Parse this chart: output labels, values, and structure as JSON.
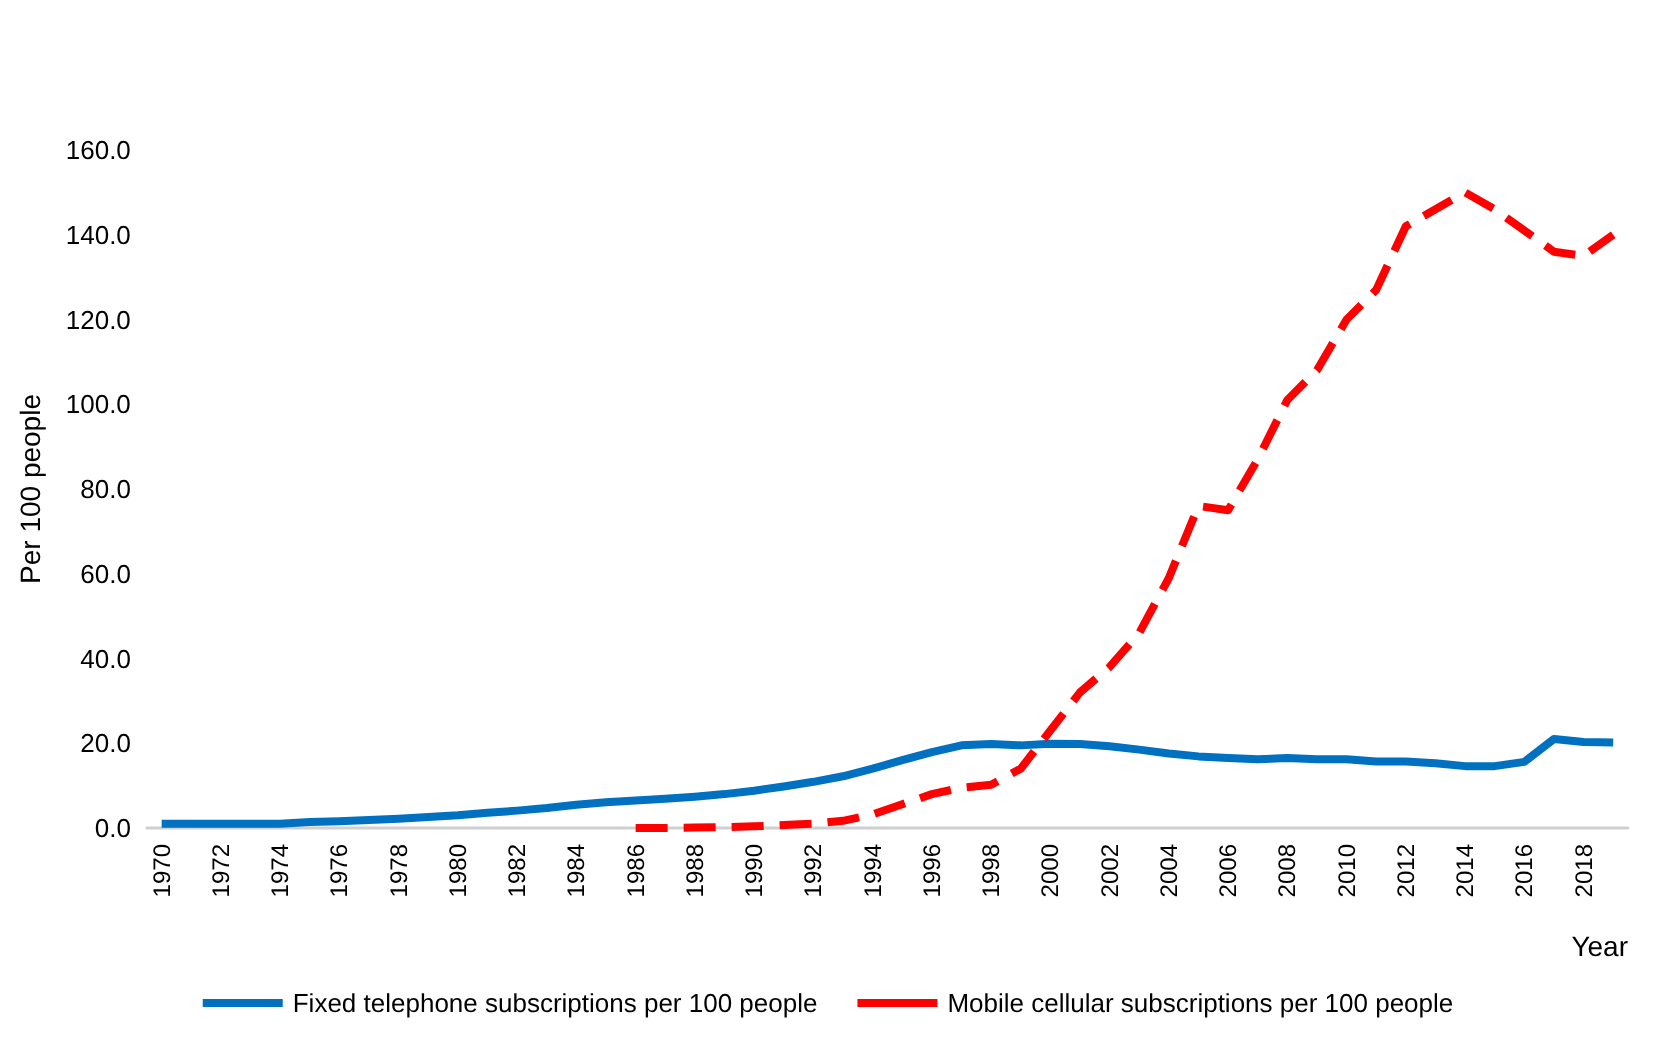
{
  "chart_data": {
    "type": "line",
    "xlabel": "Year",
    "ylabel": "Per 100 people",
    "categories": [
      "1970",
      null,
      "1972",
      null,
      "1974",
      null,
      "1976",
      null,
      "1978",
      null,
      "1980",
      null,
      "1982",
      null,
      "1984",
      null,
      "1986",
      null,
      "1988",
      null,
      "1990",
      null,
      "1992",
      null,
      "1994",
      null,
      "1996",
      null,
      "1998",
      null,
      "2000",
      null,
      "2002",
      null,
      "2004",
      null,
      "2006",
      null,
      "2008",
      null,
      "2010",
      null,
      "2012",
      null,
      "2014",
      null,
      "2016",
      null,
      "2018",
      null
    ],
    "series": [
      {
        "name": "Fixed telephone subscriptions per 100 people",
        "color": "#0070c0",
        "line_style": "solid",
        "values": [
          1.0,
          1.0,
          1.0,
          1.0,
          1.0,
          1.4,
          1.6,
          1.9,
          2.2,
          2.6,
          3.0,
          3.6,
          4.1,
          4.7,
          5.5,
          6.1,
          6.5,
          6.9,
          7.4,
          8.0,
          8.8,
          9.8,
          10.9,
          12.2,
          14.0,
          16.0,
          17.9,
          19.5,
          19.8,
          19.5,
          19.9,
          19.8,
          19.3,
          18.5,
          17.6,
          16.9,
          16.5,
          16.2,
          16.5,
          16.2,
          16.2,
          15.7,
          15.7,
          15.3,
          14.6,
          14.6,
          15.6,
          21.0,
          20.3,
          20.2
        ]
      },
      {
        "name": "Mobile cellular subscriptions per 100 people",
        "color": "#ff0000",
        "line_style": "dashed",
        "values": [
          null,
          null,
          null,
          null,
          null,
          null,
          null,
          null,
          null,
          null,
          null,
          null,
          null,
          null,
          null,
          null,
          0.0,
          0.0,
          0.1,
          0.2,
          0.4,
          0.7,
          1.0,
          1.7,
          3.2,
          5.6,
          8.0,
          9.5,
          10.2,
          14.0,
          23.0,
          32.0,
          38.0,
          46.0,
          59.0,
          76.0,
          75.0,
          87.0,
          101.0,
          108.0,
          120.0,
          127.0,
          142.0,
          146.0,
          150.0,
          146.0,
          141.0,
          136.0,
          135.0,
          140.0
        ]
      }
    ],
    "ylim": [
      0,
      160
    ],
    "yticks": [
      {
        "value": 0,
        "label": "0.0"
      },
      {
        "value": 20,
        "label": "20.0"
      },
      {
        "value": 40,
        "label": "40.0"
      },
      {
        "value": 60,
        "label": "60.0"
      },
      {
        "value": 80,
        "label": "80.0"
      },
      {
        "value": 100,
        "label": "100.0"
      },
      {
        "value": 120,
        "label": "120.0"
      },
      {
        "value": 140,
        "label": "140.0"
      },
      {
        "value": 160,
        "label": "160.0"
      }
    ],
    "grid": false,
    "legend": "bottom",
    "marker": "none"
  }
}
